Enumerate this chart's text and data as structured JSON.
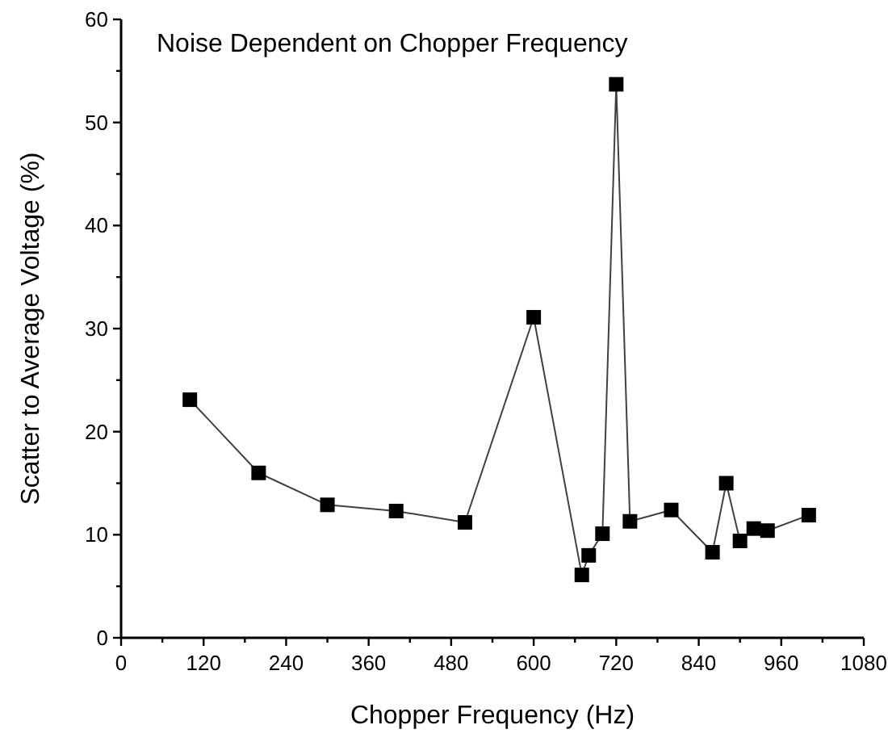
{
  "chart_data": {
    "type": "line",
    "title": "Noise Dependent on Chopper Frequency",
    "xlabel": "Chopper Frequency (Hz)",
    "ylabel": "Scatter to Average Voltage (%)",
    "x": [
      100,
      200,
      300,
      400,
      500,
      600,
      670,
      680,
      700,
      720,
      740,
      800,
      860,
      880,
      900,
      920,
      940,
      1000
    ],
    "series": [
      {
        "color": "#000000",
        "values": [
          23.1,
          16,
          12.9,
          12.3,
          11.2,
          31.1,
          6.1,
          8,
          10.1,
          53.7,
          11.3,
          12.4,
          8.3,
          15,
          9.4,
          10.6,
          10.4,
          11.9
        ]
      }
    ],
    "xlim": [
      0,
      1080
    ],
    "ylim": [
      0,
      60
    ],
    "xticks": [
      0,
      {
        "value": 60,
        "label": null
      },
      120,
      {
        "value": 180,
        "label": null
      },
      240,
      {
        "value": 300,
        "label": null
      },
      360,
      {
        "value": 420,
        "label": null
      },
      480,
      {
        "value": 540,
        "label": null
      },
      600,
      {
        "value": 660,
        "label": null
      },
      720,
      {
        "value": 780,
        "label": null
      },
      840,
      {
        "value": 900,
        "label": null
      },
      960,
      {
        "value": 1020,
        "label": null
      },
      1080
    ],
    "yticks": [
      0,
      {
        "value": 5,
        "label": null
      },
      10,
      {
        "value": 15,
        "label": null
      },
      20,
      {
        "value": 25,
        "label": null
      },
      30,
      {
        "value": 35,
        "label": null
      },
      40,
      {
        "value": 45,
        "label": null
      },
      50,
      {
        "value": 55,
        "label": null
      },
      60
    ],
    "marker": "square",
    "line_style": "solid",
    "grid": false
  }
}
